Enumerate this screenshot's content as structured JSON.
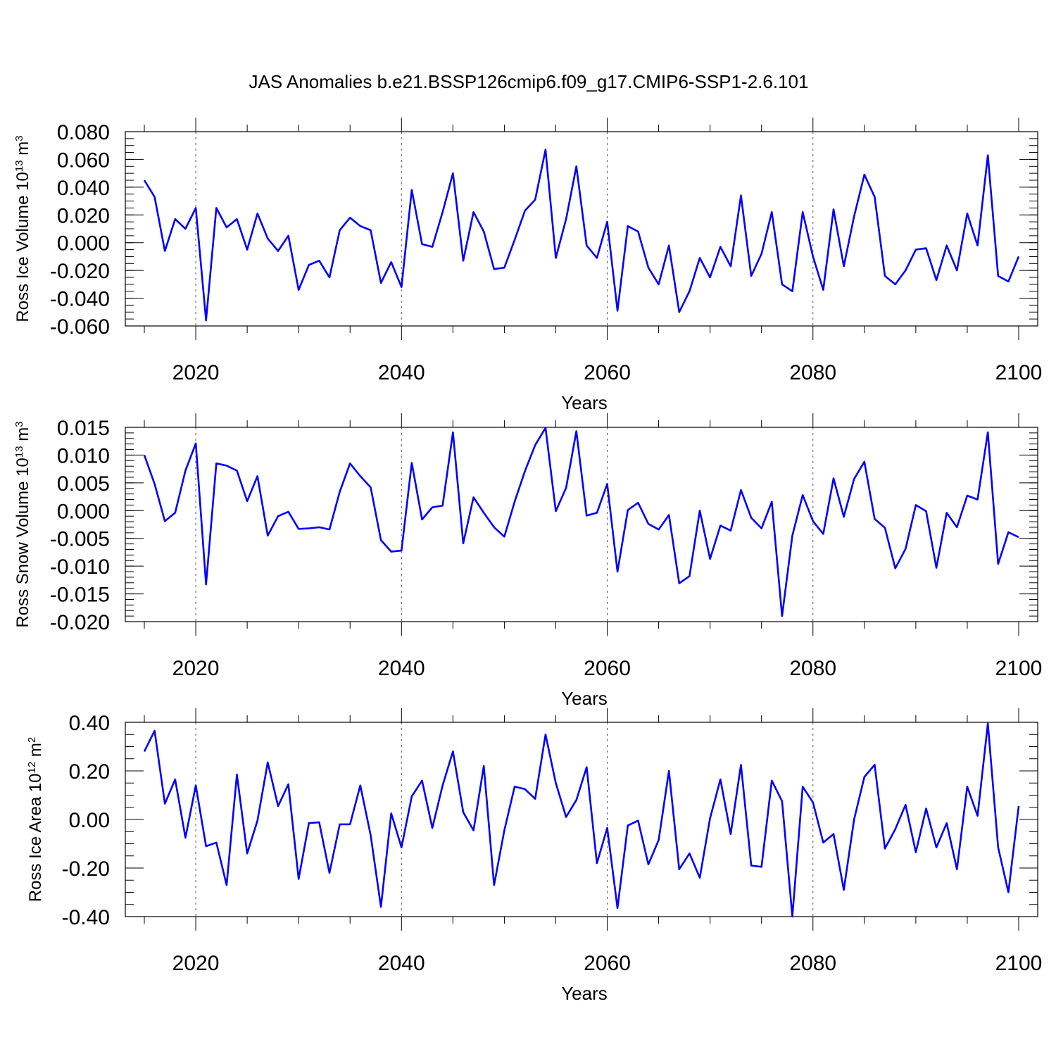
{
  "figure": {
    "title": "JAS Anomalies b.e21.BSSP126cmip6.f09_g17.CMIP6-SSP1-2.6.101"
  },
  "chart_data": [
    {
      "type": "line",
      "ylabel_main": "Ross Ice Volume 10",
      "ylabel_exp": "13",
      "ylabel_unit": " m",
      "ylabel_unit_exp": "3",
      "xlabel": "Years",
      "xlim": [
        2015,
        2100
      ],
      "ylim": [
        -0.06,
        0.08
      ],
      "yticks": [
        -0.06,
        -0.04,
        -0.02,
        0.0,
        0.02,
        0.04,
        0.06,
        0.08
      ],
      "ytick_labels": [
        "-0.060",
        "-0.040",
        "-0.020",
        "0.000",
        "0.020",
        "0.040",
        "0.060",
        "0.080"
      ],
      "yminor_step": 0.005,
      "xticks": [
        2020,
        2040,
        2060,
        2080,
        2100
      ],
      "xtick_labels": [
        "2020",
        "2040",
        "2060",
        "2080",
        "2100"
      ],
      "color": "#0000ff",
      "x_start": 2015,
      "values": [
        0.045,
        0.033,
        -0.006,
        0.017,
        0.01,
        0.025,
        -0.056,
        0.025,
        0.011,
        0.017,
        -0.005,
        0.021,
        0.003,
        -0.006,
        0.005,
        -0.034,
        -0.016,
        -0.013,
        -0.025,
        0.009,
        0.018,
        0.012,
        0.009,
        -0.029,
        -0.014,
        -0.032,
        0.038,
        -0.001,
        -0.003,
        0.022,
        0.05,
        -0.013,
        0.022,
        0.008,
        -0.019,
        -0.018,
        0.002,
        0.023,
        0.031,
        0.067,
        -0.011,
        0.017,
        0.055,
        -0.002,
        -0.011,
        0.015,
        -0.049,
        0.012,
        0.008,
        -0.018,
        -0.03,
        -0.002,
        -0.05,
        -0.035,
        -0.011,
        -0.025,
        -0.003,
        -0.017,
        0.034,
        -0.024,
        -0.008,
        0.022,
        -0.03,
        -0.035,
        0.022,
        -0.01,
        -0.034,
        0.024,
        -0.017,
        0.019,
        0.049,
        0.033,
        -0.024,
        -0.03,
        -0.02,
        -0.005,
        -0.004,
        -0.027,
        -0.002,
        -0.02,
        0.021,
        -0.002,
        0.063,
        -0.024,
        -0.028,
        -0.01
      ]
    },
    {
      "type": "line",
      "ylabel_main": "Ross Snow Volume 10",
      "ylabel_exp": "13",
      "ylabel_unit": " m",
      "ylabel_unit_exp": "3",
      "xlabel": "Years",
      "xlim": [
        2015,
        2100
      ],
      "ylim": [
        -0.02,
        0.015
      ],
      "yticks": [
        -0.02,
        -0.015,
        -0.01,
        -0.005,
        0.0,
        0.005,
        0.01,
        0.015
      ],
      "ytick_labels": [
        "-0.020",
        "-0.015",
        "-0.010",
        "-0.005",
        "0.000",
        "0.005",
        "0.010",
        "0.015"
      ],
      "yminor_step": 0.001,
      "xticks": [
        2020,
        2040,
        2060,
        2080,
        2100
      ],
      "xtick_labels": [
        "2020",
        "2040",
        "2060",
        "2080",
        "2100"
      ],
      "color": "#0000ff",
      "x_start": 2015,
      "values": [
        0.01,
        0.0048,
        -0.0019,
        -0.0004,
        0.0072,
        0.0121,
        -0.0133,
        0.0085,
        0.0081,
        0.0072,
        0.0017,
        0.0062,
        -0.0045,
        -0.001,
        -0.0002,
        -0.0033,
        -0.0032,
        -0.003,
        -0.0034,
        0.0034,
        0.0085,
        0.0062,
        0.0042,
        -0.0053,
        -0.0074,
        -0.0072,
        0.0086,
        -0.0016,
        0.0006,
        0.0009,
        0.0141,
        -0.0059,
        0.0024,
        -0.0004,
        -0.003,
        -0.0047,
        0.0016,
        0.0071,
        0.0118,
        0.0149,
        -0.0001,
        0.0041,
        0.0143,
        -0.0009,
        -0.0004,
        0.0048,
        -0.011,
        0.0001,
        0.0014,
        -0.0024,
        -0.0034,
        -0.0008,
        -0.0131,
        -0.0118,
        0.0,
        -0.0087,
        -0.0027,
        -0.0036,
        0.0037,
        -0.0013,
        -0.0032,
        0.0016,
        -0.019,
        -0.0045,
        0.0028,
        -0.0019,
        -0.0042,
        0.0058,
        -0.0011,
        0.0057,
        0.0088,
        -0.0015,
        -0.0031,
        -0.0104,
        -0.0069,
        0.001,
        -0.0001,
        -0.0103,
        -0.0004,
        -0.003,
        0.0027,
        0.002,
        0.0141,
        -0.0096,
        -0.0039,
        -0.0048
      ]
    },
    {
      "type": "line",
      "ylabel_main": "Ross Ice Area 10",
      "ylabel_exp": "12",
      "ylabel_unit": " m",
      "ylabel_unit_exp": "2",
      "xlabel": "Years",
      "xlim": [
        2015,
        2100
      ],
      "ylim": [
        -0.4,
        0.4
      ],
      "yticks": [
        -0.4,
        -0.2,
        0.0,
        0.2,
        0.4
      ],
      "ytick_labels": [
        "-0.40",
        "-0.20",
        "0.00",
        "0.20",
        "0.40"
      ],
      "yminor_step": 0.05,
      "xticks": [
        2020,
        2040,
        2060,
        2080,
        2100
      ],
      "xtick_labels": [
        "2020",
        "2040",
        "2060",
        "2080",
        "2100"
      ],
      "color": "#0000ff",
      "x_start": 2015,
      "values": [
        0.28,
        0.365,
        0.065,
        0.165,
        -0.075,
        0.14,
        -0.11,
        -0.095,
        -0.27,
        0.185,
        -0.14,
        -0.005,
        0.235,
        0.055,
        0.145,
        -0.245,
        -0.015,
        -0.012,
        -0.22,
        -0.02,
        -0.02,
        0.14,
        -0.065,
        -0.36,
        0.025,
        -0.115,
        0.095,
        0.16,
        -0.035,
        0.14,
        0.28,
        0.03,
        -0.045,
        0.22,
        -0.27,
        -0.045,
        0.135,
        0.125,
        0.085,
        0.35,
        0.15,
        0.01,
        0.08,
        0.215,
        -0.18,
        -0.035,
        -0.365,
        -0.025,
        -0.005,
        -0.185,
        -0.085,
        0.2,
        -0.205,
        -0.14,
        -0.24,
        0.005,
        0.165,
        -0.06,
        0.225,
        -0.19,
        -0.195,
        0.16,
        0.075,
        -0.4,
        0.135,
        0.07,
        -0.095,
        -0.06,
        -0.29,
        0.0,
        0.175,
        0.225,
        -0.12,
        -0.04,
        0.06,
        -0.135,
        0.045,
        -0.115,
        -0.015,
        -0.205,
        0.135,
        0.015,
        0.395,
        -0.115,
        -0.3,
        0.055
      ]
    }
  ]
}
